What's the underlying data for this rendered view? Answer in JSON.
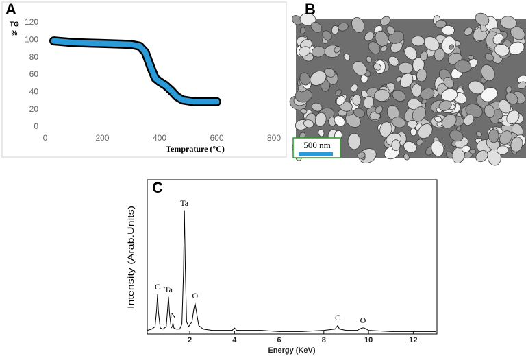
{
  "chart_data": [
    {
      "type": "line",
      "panel_label": "A",
      "ylabel": "TG",
      "ylabel_unit": "%",
      "xlabel": "Temprature (°C)",
      "xlim": [
        0,
        800
      ],
      "ylim": [
        0,
        120
      ],
      "xticks": [
        0,
        200,
        400,
        600,
        800
      ],
      "yticks": [
        0,
        20,
        40,
        60,
        80,
        100,
        120
      ],
      "x": [
        30,
        100,
        200,
        300,
        330,
        350,
        370,
        385,
        400,
        420,
        440,
        460,
        480,
        520,
        560,
        600
      ],
      "series": [
        {
          "color": "#2a9ad8",
          "outline_color": "#000000",
          "values": [
            99,
            97,
            96,
            95,
            93,
            86,
            68,
            56,
            52,
            48,
            42,
            35,
            31,
            29,
            29,
            29
          ]
        }
      ]
    },
    {
      "type": "image",
      "panel_label": "B",
      "scale_bar": "500 nm"
    },
    {
      "type": "line",
      "panel_label": "C",
      "ylabel": "Intensity (Arab.Units)",
      "xlabel": "Energy (KeV)",
      "xlim": [
        0.1,
        13
      ],
      "ylim": [
        0,
        125
      ],
      "xticks": [
        2,
        4,
        6,
        8,
        10,
        12
      ],
      "x": [
        0.1,
        0.3,
        0.45,
        0.52,
        0.56,
        0.6,
        0.68,
        0.8,
        0.95,
        1.0,
        1.05,
        1.1,
        1.17,
        1.22,
        1.25,
        1.29,
        1.4,
        1.55,
        1.65,
        1.72,
        1.76,
        1.8,
        1.86,
        1.95,
        2.1,
        2.18,
        2.24,
        2.3,
        2.4,
        2.6,
        3.0,
        3.5,
        3.9,
        4.0,
        4.1,
        4.6,
        5.2,
        6.0,
        7.0,
        8.0,
        8.5,
        8.62,
        8.7,
        9.0,
        9.5,
        9.7,
        9.8,
        10.0,
        11,
        12,
        13
      ],
      "series": [
        {
          "color": "#000000",
          "values": [
            3,
            4,
            6,
            20,
            32,
            18,
            5,
            4,
            6,
            18,
            30,
            16,
            5,
            6,
            9,
            5,
            4,
            4,
            8,
            50,
            100,
            55,
            10,
            6,
            10,
            20,
            25,
            18,
            7,
            4,
            3,
            3,
            3,
            5,
            3,
            3,
            3,
            2,
            2,
            3,
            4,
            7,
            4,
            3,
            3,
            5,
            5,
            3,
            2,
            2,
            2
          ]
        }
      ],
      "annotations": [
        {
          "text": "C",
          "x": 0.56
        },
        {
          "text": "Ta",
          "x": 1.05
        },
        {
          "text": "N",
          "x": 1.25
        },
        {
          "text": "Ta",
          "x": 1.76
        },
        {
          "text": "O",
          "x": 2.24
        },
        {
          "text": "C",
          "x": 8.62
        },
        {
          "text": "O",
          "x": 9.75
        }
      ]
    }
  ]
}
